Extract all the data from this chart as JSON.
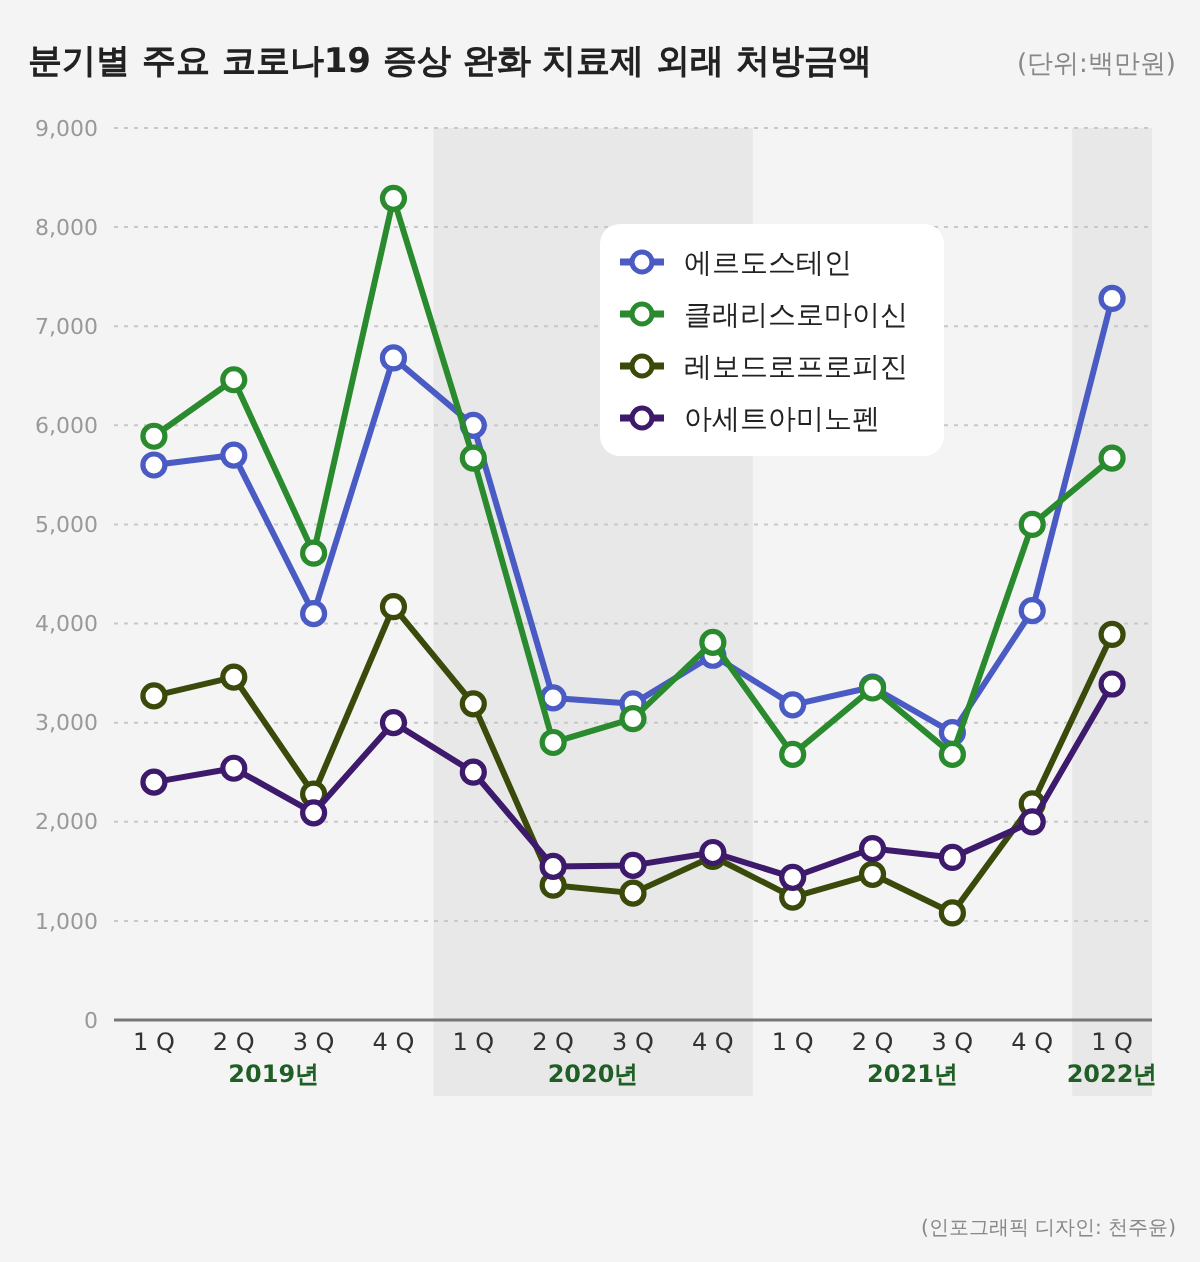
{
  "chart_data": {
    "type": "line",
    "title": "분기별 주요 코로나19 증상 완화 치료제 외래 처방금액",
    "subtitle": "(단위:백만원)",
    "categories": [
      "1 Q",
      "2 Q",
      "3 Q",
      "4 Q",
      "1 Q",
      "2 Q",
      "3 Q",
      "4 Q",
      "1 Q",
      "2 Q",
      "3 Q",
      "4 Q",
      "1 Q"
    ],
    "series": [
      {
        "name": "에르도스테인",
        "color": "#4a5bc4",
        "values": [
          5600,
          5700,
          4100,
          6680,
          6000,
          3250,
          3190,
          3680,
          3180,
          3360,
          2900,
          4130,
          7280
        ]
      },
      {
        "name": "클래리스로마이신",
        "color": "#2a8a2e",
        "values": [
          5890,
          6460,
          4710,
          8290,
          5670,
          2800,
          3040,
          3810,
          2680,
          3350,
          2680,
          5000,
          5670
        ]
      },
      {
        "name": "레보드로프로피진",
        "color": "#3a4a0a",
        "values": [
          3270,
          3460,
          2280,
          4170,
          3190,
          1360,
          1280,
          1650,
          1240,
          1470,
          1080,
          2180,
          3890
        ]
      },
      {
        "name": "아세트아미노펜",
        "color": "#3d1a6b",
        "values": [
          2400,
          2540,
          2090,
          3000,
          2500,
          1550,
          1560,
          1690,
          1440,
          1730,
          1640,
          2000,
          3390
        ]
      }
    ],
    "ylim": [
      0,
      9000
    ],
    "yticks": [
      0,
      {
        "value": 1000,
        "label": "1,000"
      },
      {
        "value": 2000,
        "label": "2,000"
      },
      {
        "value": 3000,
        "label": "3,000"
      },
      {
        "value": 4000,
        "label": "4,000"
      },
      {
        "value": 5000,
        "label": "5,000"
      },
      {
        "value": 6000,
        "label": "6,000"
      },
      {
        "value": 7000,
        "label": "7,000"
      },
      {
        "value": 8000,
        "label": "8,000"
      },
      {
        "value": 9000,
        "label": "9,000"
      }
    ],
    "grid": "y",
    "legend": "top",
    "marker": "circle",
    "line_style": "solid",
    "annotations": [
      "2019년",
      "2020년",
      "2021년",
      "2022년",
      "(인포그래픽 디자인: 천주윤)"
    ]
  }
}
